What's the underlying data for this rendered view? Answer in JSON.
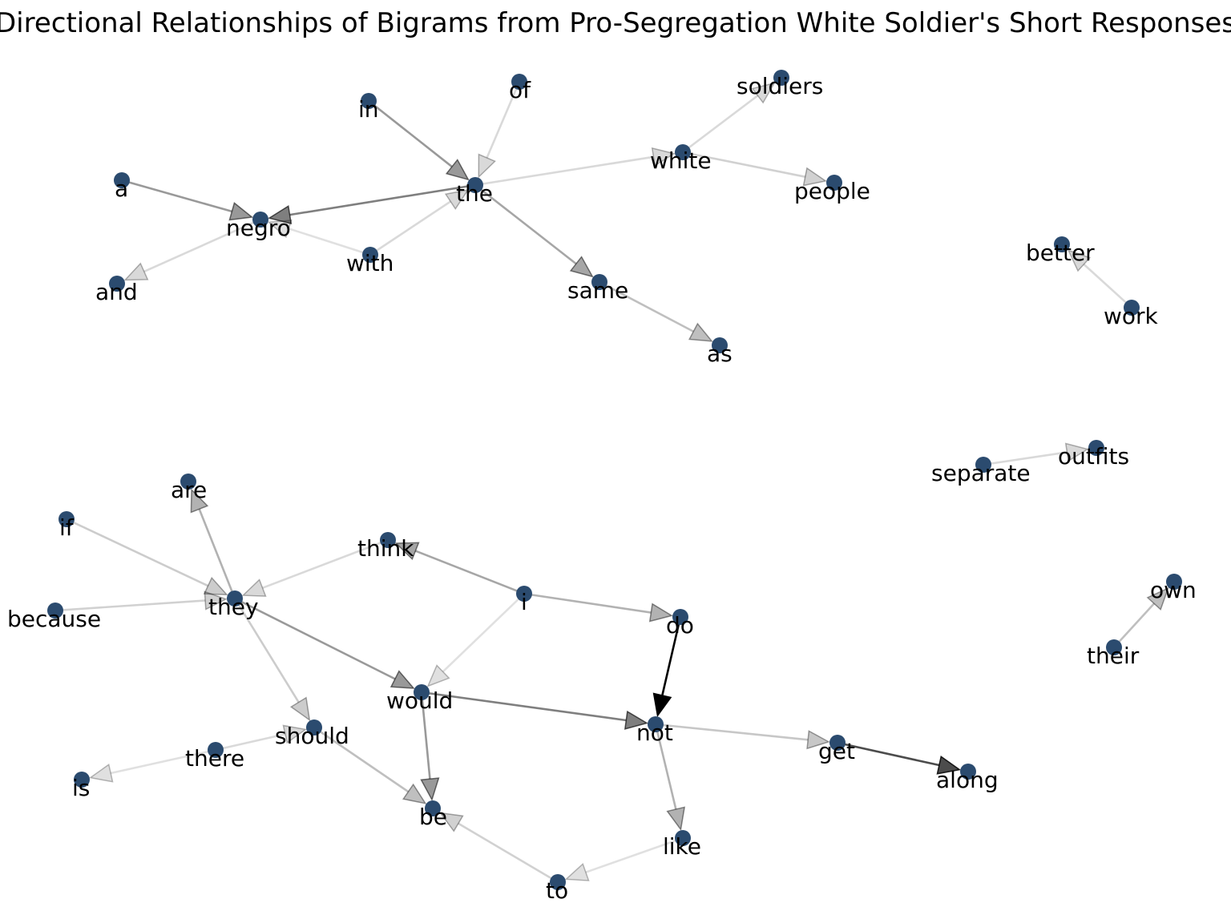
{
  "title": "Directional Relationships of Bigrams from Pro-Segregation White Soldier's Short Responses",
  "colors": {
    "node": "#2b4b6f",
    "edge": "#000000",
    "label": "#000000",
    "background": "#ffffff"
  },
  "nodes": [
    {
      "id": "in",
      "label": "in"
    },
    {
      "id": "of",
      "label": "of"
    },
    {
      "id": "soldiers",
      "label": "soldiers"
    },
    {
      "id": "white",
      "label": "white"
    },
    {
      "id": "a",
      "label": "a"
    },
    {
      "id": "the",
      "label": "the"
    },
    {
      "id": "people",
      "label": "people"
    },
    {
      "id": "negro",
      "label": "negro"
    },
    {
      "id": "with",
      "label": "with"
    },
    {
      "id": "and",
      "label": "and"
    },
    {
      "id": "same",
      "label": "same"
    },
    {
      "id": "as",
      "label": "as"
    },
    {
      "id": "better",
      "label": "better"
    },
    {
      "id": "work",
      "label": "work"
    },
    {
      "id": "separate",
      "label": "separate"
    },
    {
      "id": "outfits",
      "label": "outfits"
    },
    {
      "id": "are",
      "label": "are"
    },
    {
      "id": "if",
      "label": "if"
    },
    {
      "id": "think",
      "label": "think"
    },
    {
      "id": "because",
      "label": "because"
    },
    {
      "id": "they",
      "label": "they"
    },
    {
      "id": "i",
      "label": "i"
    },
    {
      "id": "do",
      "label": "do"
    },
    {
      "id": "own",
      "label": "own"
    },
    {
      "id": "their",
      "label": "their"
    },
    {
      "id": "would",
      "label": "would"
    },
    {
      "id": "should",
      "label": "should"
    },
    {
      "id": "not",
      "label": "not"
    },
    {
      "id": "there",
      "label": "there"
    },
    {
      "id": "get",
      "label": "get"
    },
    {
      "id": "along",
      "label": "along"
    },
    {
      "id": "is",
      "label": "is"
    },
    {
      "id": "be",
      "label": "be"
    },
    {
      "id": "like",
      "label": "like"
    },
    {
      "id": "to",
      "label": "to"
    }
  ],
  "edges": [
    {
      "source": "in",
      "target": "the",
      "weight": 0.4
    },
    {
      "source": "of",
      "target": "the",
      "weight": 0.15
    },
    {
      "source": "the",
      "target": "negro",
      "weight": 0.5
    },
    {
      "source": "a",
      "target": "negro",
      "weight": 0.4
    },
    {
      "source": "with",
      "target": "the",
      "weight": 0.15
    },
    {
      "source": "with",
      "target": "negro",
      "weight": 0.12
    },
    {
      "source": "negro",
      "target": "and",
      "weight": 0.15
    },
    {
      "source": "the",
      "target": "white",
      "weight": 0.15
    },
    {
      "source": "white",
      "target": "soldiers",
      "weight": 0.15
    },
    {
      "source": "white",
      "target": "people",
      "weight": 0.18
    },
    {
      "source": "the",
      "target": "same",
      "weight": 0.35
    },
    {
      "source": "same",
      "target": "as",
      "weight": 0.25
    },
    {
      "source": "work",
      "target": "better",
      "weight": 0.15
    },
    {
      "source": "separate",
      "target": "outfits",
      "weight": 0.15
    },
    {
      "source": "their",
      "target": "own",
      "weight": 0.25
    },
    {
      "source": "they",
      "target": "are",
      "weight": 0.3
    },
    {
      "source": "if",
      "target": "they",
      "weight": 0.2
    },
    {
      "source": "because",
      "target": "they",
      "weight": 0.18
    },
    {
      "source": "think",
      "target": "they",
      "weight": 0.15
    },
    {
      "source": "i",
      "target": "think",
      "weight": 0.35
    },
    {
      "source": "i",
      "target": "do",
      "weight": 0.3
    },
    {
      "source": "i",
      "target": "would",
      "weight": 0.12
    },
    {
      "source": "they",
      "target": "would",
      "weight": 0.4
    },
    {
      "source": "they",
      "target": "should",
      "weight": 0.2
    },
    {
      "source": "do",
      "target": "not",
      "weight": 1.0
    },
    {
      "source": "would",
      "target": "not",
      "weight": 0.5
    },
    {
      "source": "would",
      "target": "be",
      "weight": 0.4
    },
    {
      "source": "should",
      "target": "be",
      "weight": 0.25
    },
    {
      "source": "there",
      "target": "should",
      "weight": 0.15
    },
    {
      "source": "there",
      "target": "is",
      "weight": 0.12
    },
    {
      "source": "not",
      "target": "get",
      "weight": 0.22
    },
    {
      "source": "get",
      "target": "along",
      "weight": 0.7
    },
    {
      "source": "not",
      "target": "like",
      "weight": 0.3
    },
    {
      "source": "like",
      "target": "to",
      "weight": 0.12
    },
    {
      "source": "to",
      "target": "be",
      "weight": 0.18
    }
  ]
}
